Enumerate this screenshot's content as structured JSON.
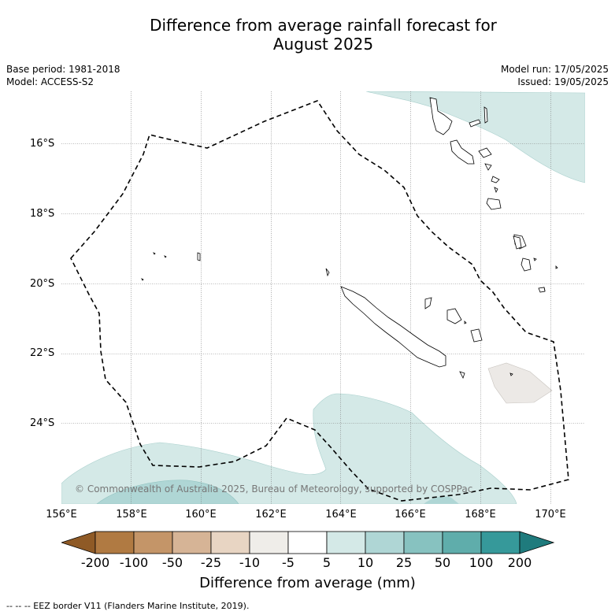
{
  "title_line1": "Difference from average rainfall forecast for",
  "title_line2": "August 2025",
  "base_period": "Base period: 1981-2018",
  "model": "Model: ACCESS-S2",
  "model_run": "Model run: 17/05/2025",
  "issued": "Issued: 19/05/2025",
  "copyright": "© Commonwealth of Australia 2025, Bureau of Meteorology, supported by COSPPac",
  "lat_labels": [
    "16°S",
    "18°S",
    "20°S",
    "22°S",
    "24°S"
  ],
  "lon_labels": [
    "156°E",
    "158°E",
    "160°E",
    "162°E",
    "164°E",
    "166°E",
    "168°E",
    "170°E"
  ],
  "colorbar": {
    "labels": [
      "-200",
      "-100",
      "-50",
      "-25",
      "-10",
      "-5",
      "5",
      "10",
      "25",
      "50",
      "100",
      "200"
    ],
    "colors": [
      "#8f5a26",
      "#b07a42",
      "#c49568",
      "#d6b496",
      "#e8d5c3",
      "#efede9",
      "#ffffff",
      "#d4e9e7",
      "#afd6d5",
      "#87c2c0",
      "#5fadab",
      "#36999a",
      "#1f7b7d"
    ],
    "title": "Difference from average (mm)"
  },
  "footer": "--  --  -- EEZ border V11 (Flanders Marine Institute, 2019)."
}
